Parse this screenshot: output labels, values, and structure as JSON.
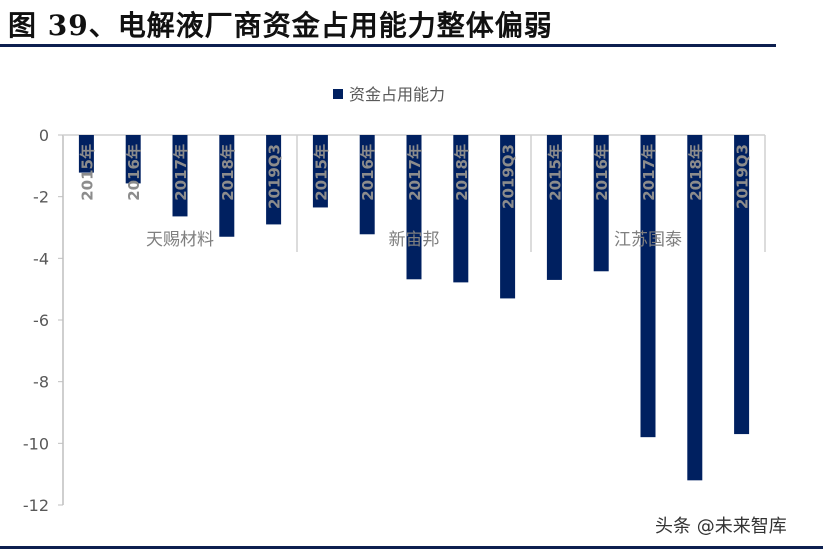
{
  "title": "图 39、电解液厂商资金占用能力整体偏弱",
  "watermark": "头条 @未来智库",
  "chart_data": {
    "type": "bar",
    "title": "",
    "legend": {
      "position": "top",
      "entries": [
        "资金占用能力"
      ]
    },
    "series": [
      {
        "name": "资金占用能力",
        "color": "#002060",
        "values": [
          -1.22,
          -1.57,
          -2.64,
          -3.3,
          -2.9,
          -2.35,
          -3.22,
          -4.68,
          -4.78,
          -5.3,
          -4.7,
          -4.42,
          -9.8,
          -11.2,
          -9.7
        ]
      }
    ],
    "groups": [
      {
        "name": "天赐材料",
        "categories": [
          "2015年",
          "2016年",
          "2017年",
          "2018年",
          "2019Q3"
        ]
      },
      {
        "name": "新宙邦",
        "categories": [
          "2015年",
          "2016年",
          "2017年",
          "2018年",
          "2019Q3"
        ]
      },
      {
        "name": "江苏国泰",
        "categories": [
          "2015年",
          "2016年",
          "2017年",
          "2018年",
          "2019Q3"
        ]
      }
    ],
    "ylim": [
      -12,
      0
    ],
    "yticks": [
      "0",
      "-2",
      "-4",
      "-6",
      "-8",
      "-10",
      "-12"
    ],
    "grid": false
  }
}
